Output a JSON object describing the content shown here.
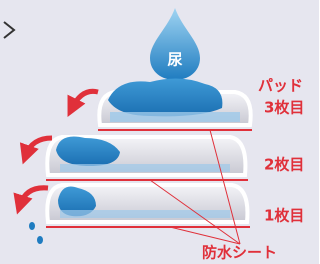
{
  "drop": {
    "label": "尿"
  },
  "labels": {
    "pad": "パッド",
    "layers": [
      "3枚目",
      "2枚目",
      "1枚目"
    ],
    "sheet": "防水シート"
  }
}
